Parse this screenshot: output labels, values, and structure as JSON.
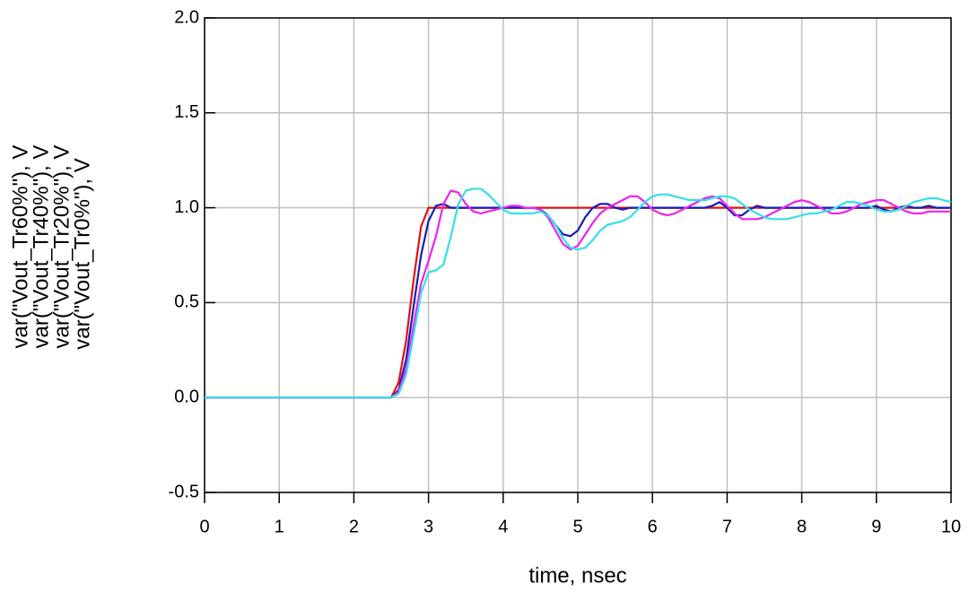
{
  "chart_data": {
    "type": "line",
    "x_label": "time, nsec",
    "x": [
      0,
      2.5,
      2.6,
      2.7,
      2.8,
      2.9,
      3.0,
      3.1,
      3.2,
      3.3,
      3.4,
      3.5,
      3.6,
      3.7,
      3.8,
      3.9,
      4.0,
      4.1,
      4.2,
      4.3,
      4.4,
      4.5,
      4.6,
      4.7,
      4.8,
      4.9,
      5.0,
      5.1,
      5.2,
      5.3,
      5.4,
      5.5,
      5.6,
      5.7,
      5.8,
      5.9,
      6.0,
      6.1,
      6.2,
      6.3,
      6.4,
      6.5,
      6.6,
      6.7,
      6.8,
      6.9,
      7.0,
      7.1,
      7.2,
      7.3,
      7.4,
      7.5,
      7.6,
      7.7,
      7.8,
      7.9,
      8.0,
      8.1,
      8.2,
      8.3,
      8.4,
      8.5,
      8.6,
      8.7,
      8.8,
      8.9,
      9.0,
      9.1,
      9.2,
      9.3,
      9.4,
      9.5,
      9.6,
      9.7,
      9.8,
      9.9,
      10
    ],
    "series": [
      {
        "name": "var(\"Vout_Tr60%\"), V",
        "color": "#33e0e8",
        "values": [
          0,
          0,
          0.02,
          0.12,
          0.33,
          0.55,
          0.66,
          0.67,
          0.7,
          0.85,
          1.02,
          1.09,
          1.1,
          1.1,
          1.07,
          1.03,
          0.99,
          0.97,
          0.97,
          0.97,
          0.97,
          0.98,
          0.96,
          0.91,
          0.84,
          0.79,
          0.78,
          0.79,
          0.83,
          0.88,
          0.91,
          0.92,
          0.93,
          0.95,
          0.99,
          1.03,
          1.06,
          1.07,
          1.07,
          1.06,
          1.05,
          1.04,
          1.04,
          1.04,
          1.05,
          1.06,
          1.06,
          1.05,
          1.02,
          0.99,
          0.97,
          0.95,
          0.94,
          0.94,
          0.94,
          0.95,
          0.96,
          0.97,
          0.97,
          0.98,
          0.99,
          1.01,
          1.03,
          1.03,
          1.02,
          1.01,
          0.99,
          0.98,
          0.98,
          0.99,
          1.01,
          1.03,
          1.04,
          1.05,
          1.05,
          1.04,
          1.03
        ]
      },
      {
        "name": "var(\"Vout_Tr40%\"), V",
        "color": "#ee22ee",
        "values": [
          0,
          0,
          0.03,
          0.15,
          0.38,
          0.6,
          0.72,
          0.85,
          1.02,
          1.09,
          1.08,
          1.02,
          0.98,
          0.97,
          0.98,
          0.99,
          1.0,
          1.01,
          1.01,
          1.0,
          1.0,
          0.99,
          0.95,
          0.88,
          0.81,
          0.78,
          0.8,
          0.86,
          0.92,
          0.97,
          1.0,
          1.02,
          1.04,
          1.06,
          1.06,
          1.03,
          0.99,
          0.97,
          0.96,
          0.97,
          0.99,
          1.01,
          1.03,
          1.05,
          1.06,
          1.05,
          1.01,
          0.97,
          0.94,
          0.94,
          0.94,
          0.95,
          0.97,
          0.99,
          1.01,
          1.03,
          1.04,
          1.03,
          1.01,
          0.99,
          0.97,
          0.97,
          0.98,
          1.0,
          1.02,
          1.03,
          1.04,
          1.04,
          1.02,
          1.0,
          0.98,
          0.97,
          0.97,
          0.98,
          0.98,
          0.98,
          0.98
        ]
      },
      {
        "name": "var(\"Vout_Tr20%\"), V",
        "color": "#1a1ab8",
        "values": [
          0,
          0,
          0.04,
          0.2,
          0.48,
          0.75,
          0.93,
          1.01,
          1.02,
          1.0,
          1.0,
          1,
          1,
          1,
          1,
          1,
          1,
          1,
          1,
          1,
          1,
          0.99,
          0.96,
          0.91,
          0.86,
          0.85,
          0.88,
          0.95,
          1.0,
          1.02,
          1.02,
          1.0,
          0.99,
          1.0,
          1.0,
          1.0,
          1.0,
          1.0,
          1.0,
          1.0,
          1.0,
          1.0,
          1.0,
          1.0,
          1.01,
          1.03,
          1.0,
          0.96,
          0.96,
          0.99,
          1.01,
          1.0,
          1.0,
          1.0,
          1.0,
          1.0,
          1.0,
          1.0,
          1.0,
          1.0,
          1.0,
          1.0,
          1.0,
          1.0,
          1.0,
          1.0,
          1.01,
          0.99,
          0.98,
          1.0,
          1.01,
          1.0,
          1.0,
          1.01,
          1.0,
          1.0,
          1.0
        ]
      },
      {
        "name": "var(\"Vout_Tr0%\"), V",
        "color": "#e01010",
        "values": [
          0,
          0,
          0.08,
          0.3,
          0.62,
          0.9,
          1,
          1,
          1,
          1,
          1,
          1,
          1,
          1,
          1,
          1,
          1,
          1,
          1,
          1,
          1,
          1,
          1,
          1,
          1,
          1,
          1,
          1,
          1,
          1,
          1,
          1,
          1,
          1,
          1,
          1,
          1,
          1,
          1,
          1,
          1,
          1,
          1,
          1,
          1,
          1,
          1,
          1,
          1,
          1,
          1,
          1,
          1,
          1,
          1,
          1,
          1,
          1,
          1,
          1,
          1,
          1,
          1,
          1,
          1,
          1,
          1,
          1,
          1,
          1,
          1,
          1,
          1,
          1,
          1,
          1,
          1
        ]
      }
    ],
    "xlim": [
      0,
      10
    ],
    "xticks": [
      0,
      1,
      2,
      3,
      4,
      5,
      6,
      7,
      8,
      9,
      10
    ],
    "ylim": [
      -0.5,
      2.0
    ],
    "yticks": [
      -0.5,
      {
        "value": 0,
        "label": "0.0"
      },
      0.5,
      {
        "value": 1,
        "label": "1.0"
      },
      1.5,
      {
        "value": 2,
        "label": "2.0"
      }
    ],
    "grid": true
  }
}
